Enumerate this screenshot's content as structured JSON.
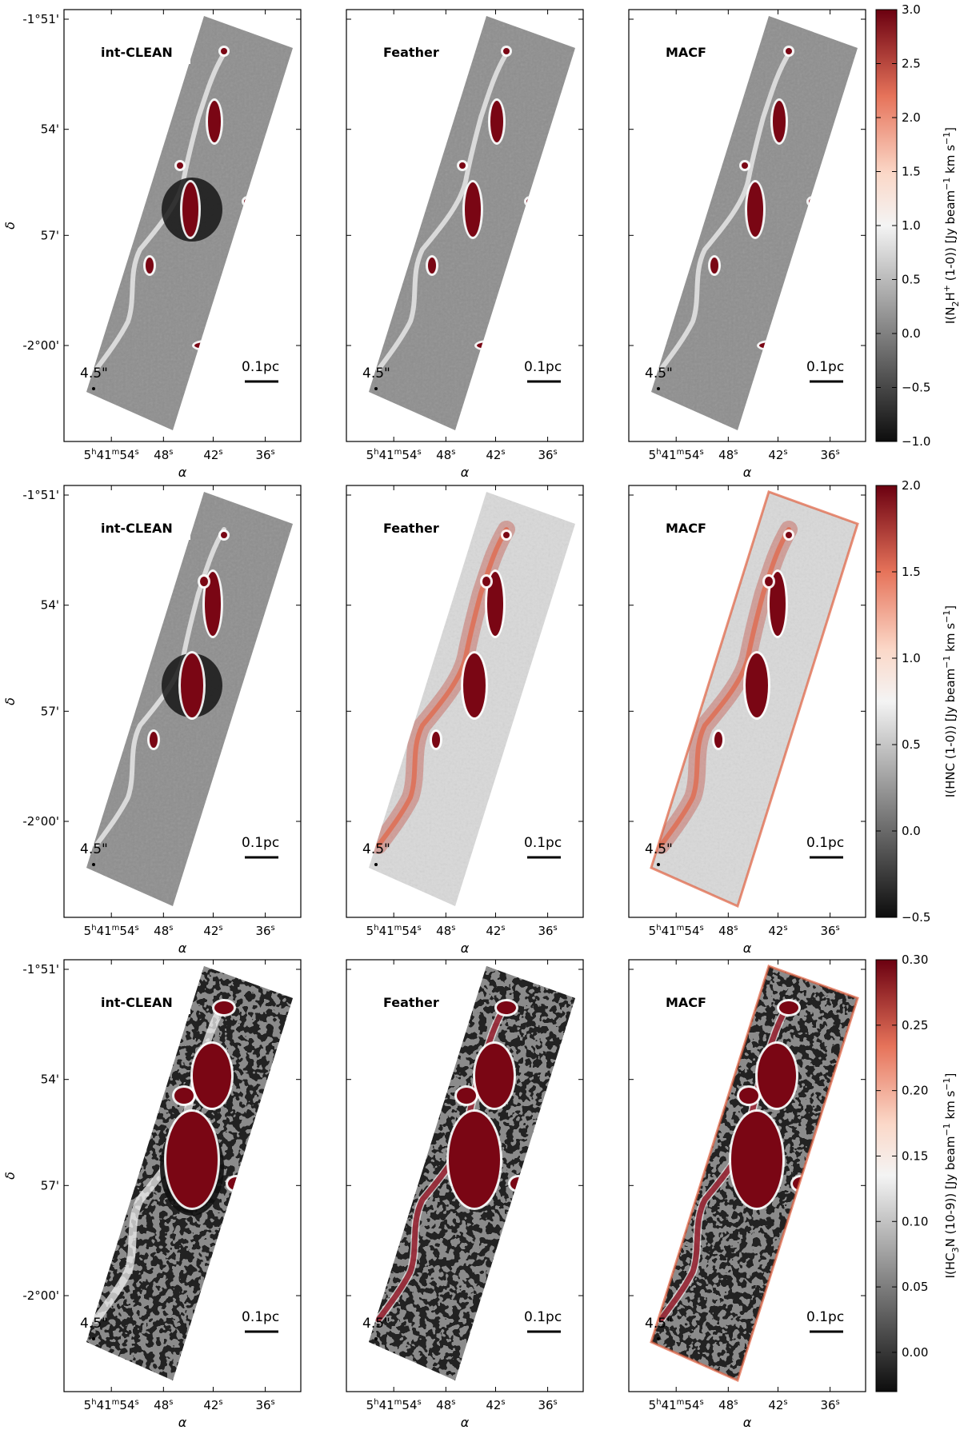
{
  "chart_data": {
    "type": "heatmap",
    "layout": "3x3 grid of sky maps (rows: molecular line, columns: imaging method)",
    "columns": [
      "int-CLEAN",
      "Feather",
      "MACF"
    ],
    "axes": {
      "xlabel": "α",
      "ylabel": "δ",
      "x_ticks": [
        "5h41m54s",
        "48s",
        "42s",
        "36s"
      ],
      "y_ticks": [
        "-1°51'",
        "54'",
        "57'",
        "-2°00'"
      ]
    },
    "beam_label": "4.5\"",
    "scalebar_label": "0.1pc",
    "rows": [
      {
        "colorbar_label": "I(N2H+ (1-0)) [Jy beam−1 km s−1]",
        "colorbar_label_parts": {
          "pre": "I(N",
          "sub": "2",
          "mid": "H",
          "sup": "+",
          "post": " (1-0)) [Jy beam",
          "unit_sup": "−1",
          "tail": " km s",
          "tail_sup": "−1",
          "end": "]"
        },
        "clim": [
          -1.0,
          3.0
        ],
        "colorbar_ticks": [
          "3.0",
          "2.5",
          "2.0",
          "1.5",
          "1.0",
          "0.5",
          "0.0",
          "−0.5",
          "−1.0"
        ]
      },
      {
        "colorbar_label": "I(HNC (1-0)) [Jy beam−1 km s−1]",
        "colorbar_label_parts": {
          "pre": "I(HNC (1-0)) [Jy beam",
          "unit_sup": "−1",
          "tail": " km s",
          "tail_sup": "−1",
          "end": "]"
        },
        "clim": [
          -0.5,
          2.0
        ],
        "colorbar_ticks": [
          "2.0",
          "1.5",
          "1.0",
          "0.5",
          "0.0",
          "−0.5"
        ]
      },
      {
        "colorbar_label": "I(HC3N (10-9)) [Jy beam−1 km s−1]",
        "colorbar_label_parts": {
          "pre": "I(HC",
          "sub": "3",
          "post": "N (10-9)) [Jy beam",
          "unit_sup": "−1",
          "tail": " km s",
          "tail_sup": "−1",
          "end": "]"
        },
        "clim": [
          -0.03,
          0.3
        ],
        "colorbar_ticks": [
          "0.30",
          "0.25",
          "0.20",
          "0.15",
          "0.10",
          "0.05",
          "0.00"
        ]
      }
    ],
    "colormap": {
      "low": "#111111",
      "mid": "#f7f7f7",
      "high": "#8b0a1a"
    }
  }
}
